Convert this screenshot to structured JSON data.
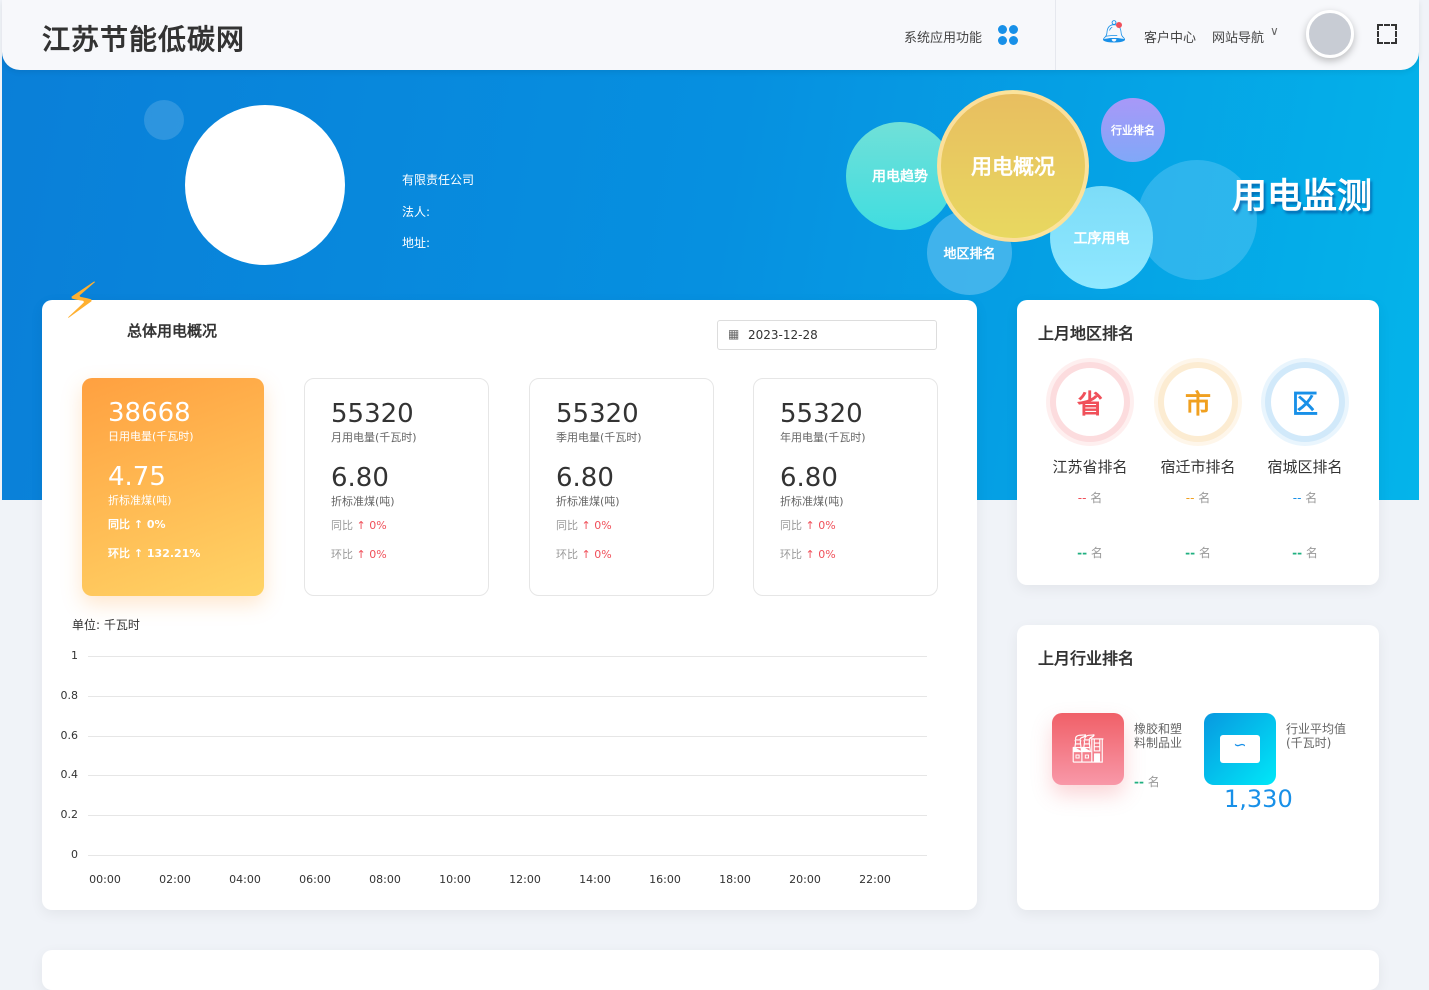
{
  "header": {
    "logo": "江苏节能低碳网",
    "system_apps": "系统应用功能",
    "customer_center": "客户中心",
    "site_nav": "网站导航"
  },
  "banner": {
    "company": "有限责任公司",
    "legal_person": "法人:",
    "address": "地址:",
    "title": "用电监测",
    "bubbles": {
      "trend": "用电趋势",
      "overview": "用电概况",
      "industry_rank": "行业排名",
      "region_rank": "地区排名",
      "process": "工序用电"
    }
  },
  "overview": {
    "title": "总体用电概况",
    "date": "2023-12-28",
    "stats": [
      {
        "value": "38668",
        "label": "日用电量(千瓦时)",
        "coal": "4.75",
        "coal_label": "折标准煤(吨)",
        "yoy_label": "同比",
        "yoy": "0%",
        "mom_label": "环比",
        "mom": "132.21%"
      },
      {
        "value": "55320",
        "label": "月用电量(千瓦时)",
        "coal": "6.80",
        "coal_label": "折标准煤(吨)",
        "yoy_label": "同比",
        "yoy": "0%",
        "mom_label": "环比",
        "mom": "0%"
      },
      {
        "value": "55320",
        "label": "季用电量(千瓦时)",
        "coal": "6.80",
        "coal_label": "折标准煤(吨)",
        "yoy_label": "同比",
        "yoy": "0%",
        "mom_label": "环比",
        "mom": "0%"
      },
      {
        "value": "55320",
        "label": "年用电量(千瓦时)",
        "coal": "6.80",
        "coal_label": "折标准煤(吨)",
        "yoy_label": "同比",
        "yoy": "0%",
        "mom_label": "环比",
        "mom": "0%"
      }
    ]
  },
  "chart_data": {
    "type": "line",
    "unit_label": "单位: 千瓦时",
    "x": [
      "00:00",
      "02:00",
      "04:00",
      "06:00",
      "08:00",
      "10:00",
      "12:00",
      "14:00",
      "16:00",
      "18:00",
      "20:00",
      "22:00"
    ],
    "yticks": [
      "0",
      "0.2",
      "0.4",
      "0.6",
      "0.8",
      "1"
    ],
    "ylim": [
      0,
      1
    ],
    "grid": true,
    "series": []
  },
  "region_rank": {
    "title": "上月地区排名",
    "items": [
      {
        "badge": "省",
        "name": "江苏省排名",
        "rank": "--",
        "unit": "名",
        "rank2": "--",
        "unit2": "名",
        "color": "#f0505a"
      },
      {
        "badge": "市",
        "name": "宿迁市排名",
        "rank": "--",
        "unit": "名",
        "rank2": "--",
        "unit2": "名",
        "color": "#f0a020"
      },
      {
        "badge": "区",
        "name": "宿城区排名",
        "rank": "--",
        "unit": "名",
        "rank2": "--",
        "unit2": "名",
        "color": "#1890e8"
      }
    ]
  },
  "industry_rank": {
    "title": "上月行业排名",
    "industry": "橡胶和塑料制品业",
    "rank": "--",
    "unit": "名",
    "avg_label": "行业平均值(千瓦时)",
    "avg_value": "1,330"
  }
}
